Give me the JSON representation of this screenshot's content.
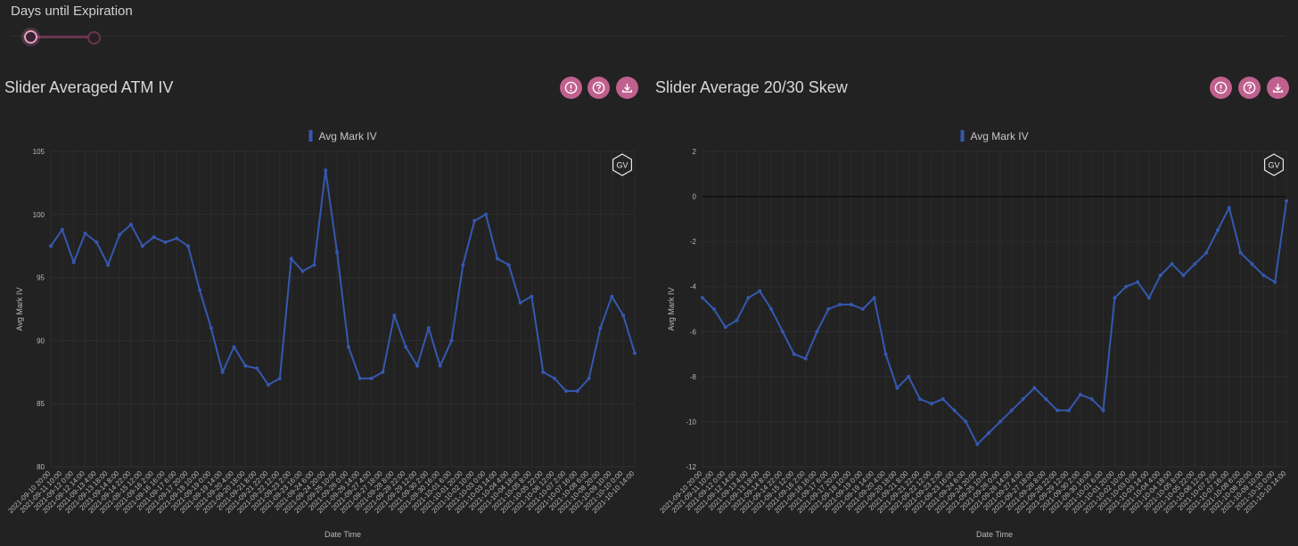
{
  "slider": {
    "label": "Days until Expiration"
  },
  "panels": [
    {
      "title": "Slider Averaged ATM IV"
    },
    {
      "title": "Slider Average 20/30 Skew"
    }
  ],
  "colors": {
    "accent": "#c0608e",
    "series": "#3558b0",
    "background": "#222222"
  },
  "icons": [
    "info-icon",
    "help-icon",
    "download-icon"
  ],
  "badge": "GV",
  "chart_data": [
    {
      "type": "line",
      "legend": "Avg Mark IV",
      "xlabel": "Date Time",
      "ylabel": "Avg Mark IV",
      "ylim": [
        80,
        105
      ],
      "yticks": [
        80,
        85,
        90,
        95,
        100,
        105
      ],
      "categories": [
        "2021-09-10 20:00",
        "2021-09-11 10:00",
        "2021-09-12 0:00",
        "2021-09-12 14:00",
        "2021-09-13 4:00",
        "2021-09-13 18:00",
        "2021-09-14 8:00",
        "2021-09-14 22:00",
        "2021-09-15 12:00",
        "2021-09-16 2:00",
        "2021-09-16 16:00",
        "2021-09-17 6:00",
        "2021-09-17 20:00",
        "2021-09-18 10:00",
        "2021-09-19 0:00",
        "2021-09-19 14:00",
        "2021-09-20 4:00",
        "2021-09-20 18:00",
        "2021-09-21 8:00",
        "2021-09-21 22:00",
        "2021-09-22 12:00",
        "2021-09-23 2:00",
        "2021-09-23 16:00",
        "2021-09-24 6:00",
        "2021-09-24 20:00",
        "2021-09-25 10:00",
        "2021-09-26 0:00",
        "2021-09-26 14:00",
        "2021-09-27 4:00",
        "2021-09-27 18:00",
        "2021-09-28 8:00",
        "2021-09-28 22:00",
        "2021-09-29 12:00",
        "2021-09-30 2:00",
        "2021-09-30 16:00",
        "2021-10-01 6:00",
        "2021-10-01 20:00",
        "2021-10-02 10:00",
        "2021-10-03 0:00",
        "2021-10-03 14:00",
        "2021-10-04 4:00",
        "2021-10-04 18:00",
        "2021-10-05 8:00",
        "2021-10-05 22:00",
        "2021-10-06 12:00",
        "2021-10-07 2:00",
        "2021-10-07 16:00",
        "2021-10-08 6:00",
        "2021-10-08 20:00",
        "2021-10-09 10:00",
        "2021-10-10 0:00",
        "2021-10-10 14:00"
      ],
      "values": [
        97.5,
        98.8,
        96.2,
        98.5,
        97.8,
        96.0,
        98.4,
        99.2,
        97.5,
        98.2,
        97.8,
        98.1,
        97.5,
        94.0,
        91.0,
        87.5,
        89.5,
        88.0,
        87.8,
        86.5,
        87.0,
        96.5,
        95.5,
        96.0,
        103.5,
        97.0,
        89.5,
        87.0,
        87.0,
        87.5,
        92.0,
        89.5,
        88.0,
        91.0,
        88.0,
        90.0,
        96.0,
        99.5,
        100.0,
        96.5,
        96.0,
        93.0,
        93.5,
        87.5,
        87.0,
        86.0,
        86.0,
        87.0,
        91.0,
        93.5,
        92.0,
        89.0
      ]
    },
    {
      "type": "line",
      "legend": "Avg Mark IV",
      "xlabel": "Date Time",
      "ylabel": "Avg Mark IV",
      "ylim": [
        -12,
        2
      ],
      "yticks": [
        -12,
        -10,
        -8,
        -6,
        -4,
        -2,
        0,
        2
      ],
      "categories": [
        "2021-09-10 20:00",
        "2021-09-11 10:00",
        "2021-09-12 0:00",
        "2021-09-12 14:00",
        "2021-09-13 4:00",
        "2021-09-13 18:00",
        "2021-09-14 8:00",
        "2021-09-14 22:00",
        "2021-09-15 12:00",
        "2021-09-16 2:00",
        "2021-09-16 16:00",
        "2021-09-17 6:00",
        "2021-09-17 20:00",
        "2021-09-18 10:00",
        "2021-09-19 0:00",
        "2021-09-19 14:00",
        "2021-09-20 4:00",
        "2021-09-20 18:00",
        "2021-09-21 8:00",
        "2021-09-21 22:00",
        "2021-09-22 12:00",
        "2021-09-23 2:00",
        "2021-09-23 16:00",
        "2021-09-24 6:00",
        "2021-09-24 20:00",
        "2021-09-25 10:00",
        "2021-09-26 0:00",
        "2021-09-26 14:00",
        "2021-09-27 4:00",
        "2021-09-27 18:00",
        "2021-09-28 8:00",
        "2021-09-28 22:00",
        "2021-09-29 12:00",
        "2021-09-30 2:00",
        "2021-09-30 16:00",
        "2021-10-01 6:00",
        "2021-10-01 20:00",
        "2021-10-02 10:00",
        "2021-10-03 0:00",
        "2021-10-03 14:00",
        "2021-10-04 4:00",
        "2021-10-04 18:00",
        "2021-10-05 8:00",
        "2021-10-05 22:00",
        "2021-10-06 12:00",
        "2021-10-07 2:00",
        "2021-10-07 16:00",
        "2021-10-08 6:00",
        "2021-10-08 20:00",
        "2021-10-09 10:00",
        "2021-10-10 0:00",
        "2021-10-10 14:00"
      ],
      "values": [
        -4.5,
        -5.0,
        -5.8,
        -5.5,
        -4.5,
        -4.2,
        -5.0,
        -6.0,
        -7.0,
        -7.2,
        -6.0,
        -5.0,
        -4.8,
        -4.8,
        -5.0,
        -4.5,
        -7.0,
        -8.5,
        -8.0,
        -9.0,
        -9.2,
        -9.0,
        -9.5,
        -10.0,
        -11.0,
        -10.5,
        -10.0,
        -9.5,
        -9.0,
        -8.5,
        -9.0,
        -9.5,
        -9.5,
        -8.8,
        -9.0,
        -9.5,
        -4.5,
        -4.0,
        -3.8,
        -4.5,
        -3.5,
        -3.0,
        -3.5,
        -3.0,
        -2.5,
        -1.5,
        -0.5,
        -2.5,
        -3.0,
        -3.5,
        -3.8,
        -0.2
      ]
    }
  ]
}
